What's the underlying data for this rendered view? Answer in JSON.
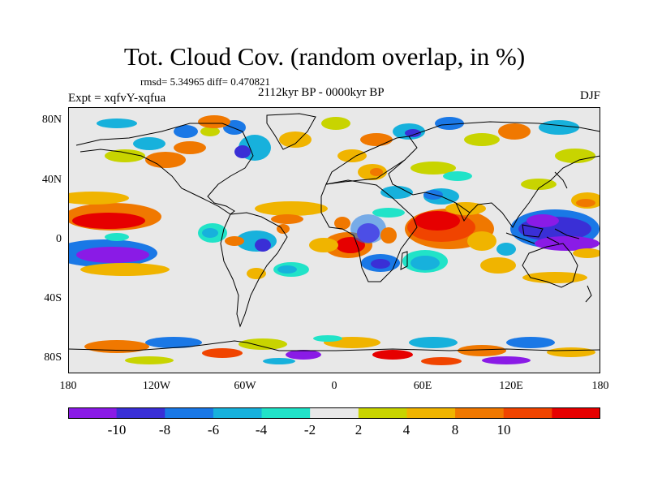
{
  "title": "Tot. Cloud Cov. (random overlap, in %)",
  "stats": "rmsd= 5.34965 diff= 0.470821",
  "experiment": "Expt = xqfvY-xqfua",
  "period": "2112kyr BP - 0000kyr BP",
  "season": "DJF",
  "y_ticks": [
    "80N",
    "40N",
    "0",
    "40S",
    "80S"
  ],
  "x_ticks": [
    "180",
    "120W",
    "60W",
    "0",
    "60E",
    "120E",
    "180"
  ],
  "colorbar": {
    "labels": [
      "-10",
      "-8",
      "-6",
      "-4",
      "-2",
      "2",
      "4",
      "8",
      "10"
    ],
    "colors": [
      "#8a1be6",
      "#3a2fd6",
      "#1a78e6",
      "#17b1dc",
      "#21e3c8",
      "#e8e8e8",
      "#c8d400",
      "#f0b400",
      "#f07800",
      "#f04400",
      "#e60000"
    ]
  },
  "colors": {
    "neutral": "#e8e8e8",
    "land_outline": "#000000"
  }
}
